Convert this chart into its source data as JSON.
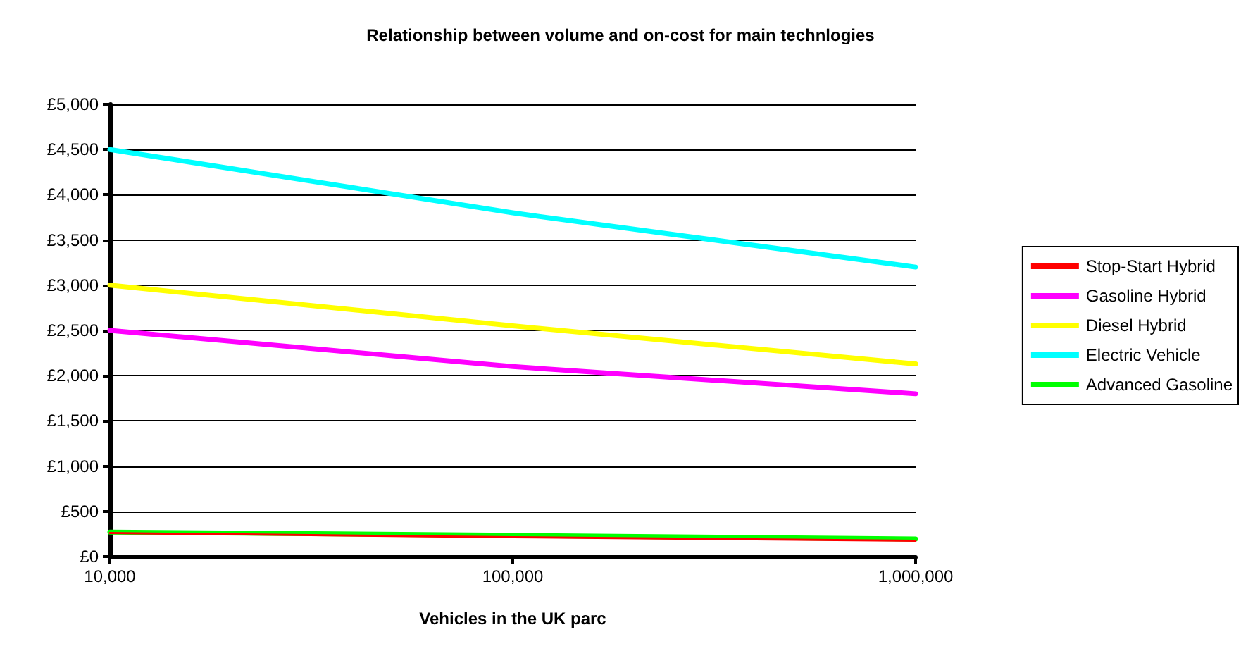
{
  "chart_data": {
    "type": "line",
    "title": "Relationship between volume and on-cost for main technlogies",
    "xlabel": "Vehicles in the UK parc",
    "x": [
      10000,
      100000,
      1000000
    ],
    "series": [
      {
        "name": "Stop-Start Hybrid",
        "color": "#ff0000",
        "values": [
          260,
          215,
          175
        ]
      },
      {
        "name": "Gasoline Hybrid",
        "color": "#ff00ff",
        "values": [
          2500,
          2100,
          1800
        ]
      },
      {
        "name": "Diesel Hybrid",
        "color": "#ffff00",
        "values": [
          3000,
          2550,
          2130
        ]
      },
      {
        "name": "Electric Vehicle",
        "color": "#00ffff",
        "values": [
          4500,
          3800,
          3200
        ]
      },
      {
        "name": "Advanced Gasoline",
        "color": "#00ff00",
        "values": [
          270,
          235,
          195
        ]
      }
    ],
    "log": "x",
    "xlim": [
      10000,
      1000000
    ],
    "xticks": [
      {
        "value": 10000,
        "label": "10,000"
      },
      {
        "value": 100000,
        "label": "100,000"
      },
      {
        "value": 1000000,
        "label": "1,000,000"
      }
    ],
    "ylim": [
      0,
      5000
    ],
    "yticks": [
      {
        "value": 0,
        "label": "£0"
      },
      {
        "value": 500,
        "label": "£500"
      },
      {
        "value": 1000,
        "label": "£1,000"
      },
      {
        "value": 1500,
        "label": "£1,500"
      },
      {
        "value": 2000,
        "label": "£2,000"
      },
      {
        "value": 2500,
        "label": "£2,500"
      },
      {
        "value": 3000,
        "label": "£3,000"
      },
      {
        "value": 3500,
        "label": "£3,500"
      },
      {
        "value": 4000,
        "label": "£4,000"
      },
      {
        "value": 4500,
        "label": "£4,500"
      },
      {
        "value": 5000,
        "label": "£5,000"
      }
    ],
    "grid": "y",
    "legend": "right",
    "marker": "none",
    "line_style": "solid"
  }
}
